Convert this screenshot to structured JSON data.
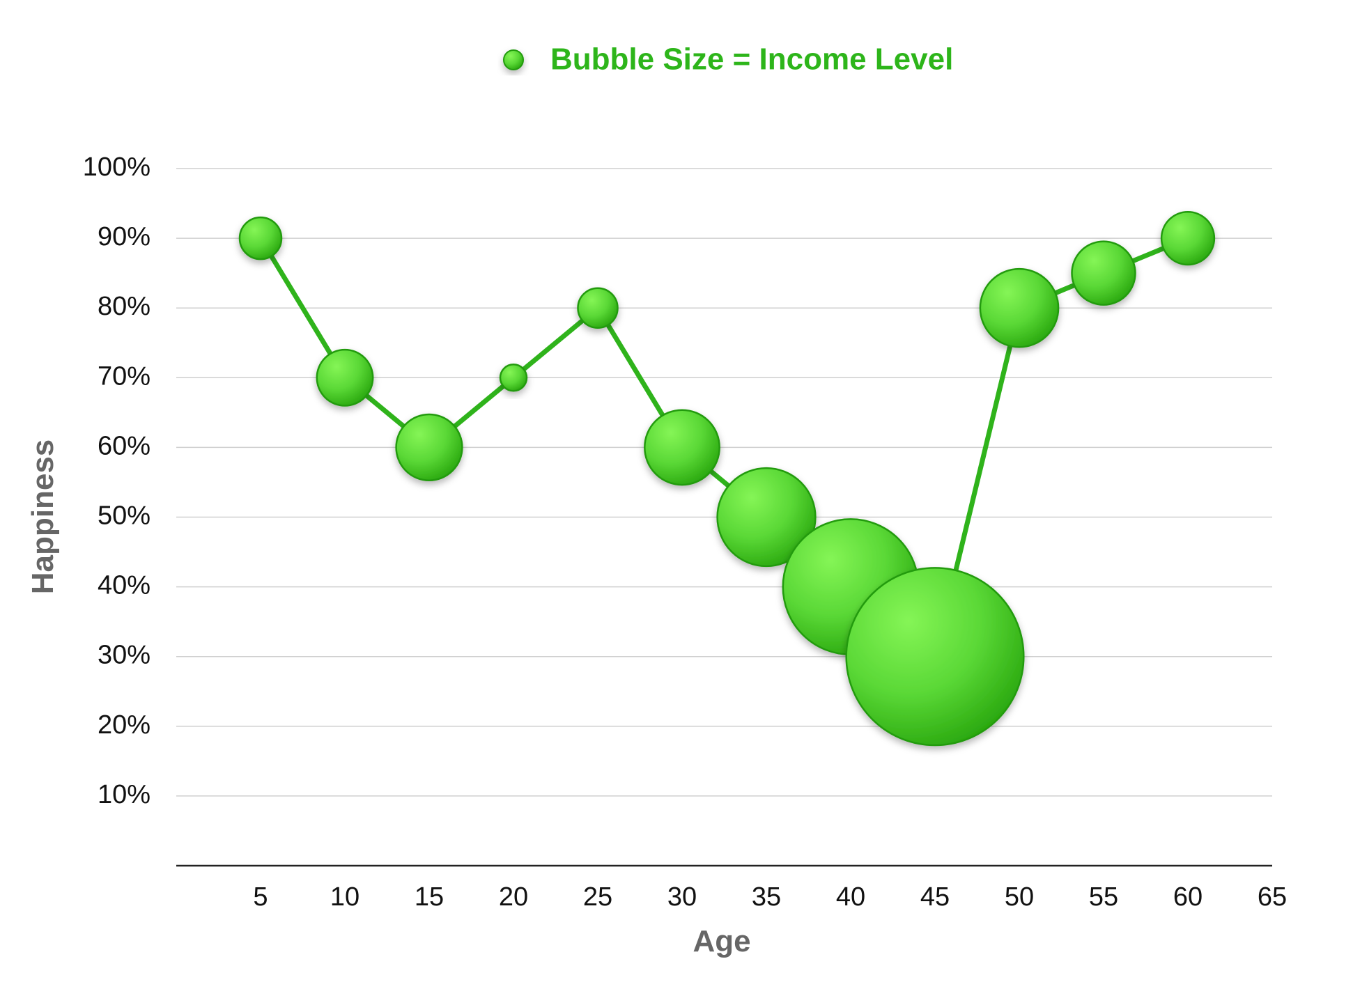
{
  "chart_data": {
    "type": "scatter",
    "subtype": "bubble",
    "legend": {
      "label": "Bubble Size = Income Level",
      "position": "top"
    },
    "xlabel": "Age",
    "ylabel": "Happiness",
    "xlim": [
      0,
      65
    ],
    "ylim": [
      0,
      100
    ],
    "x_ticks": [
      5,
      10,
      15,
      20,
      25,
      30,
      35,
      40,
      45,
      50,
      55,
      60,
      65
    ],
    "y_ticks": [
      10,
      20,
      30,
      40,
      50,
      60,
      70,
      80,
      90,
      100
    ],
    "y_tick_labels": [
      "10%",
      "20%",
      "30%",
      "40%",
      "50%",
      "60%",
      "70%",
      "80%",
      "90%",
      "100%"
    ],
    "grid": true,
    "connected_line": true,
    "series": [
      {
        "name": "Bubble Size = Income Level",
        "points": [
          {
            "x": 5,
            "y": 90,
            "size": 1.0
          },
          {
            "x": 10,
            "y": 70,
            "size": 1.8
          },
          {
            "x": 15,
            "y": 60,
            "size": 2.5
          },
          {
            "x": 20,
            "y": 70,
            "size": 0.4
          },
          {
            "x": 25,
            "y": 80,
            "size": 0.9
          },
          {
            "x": 30,
            "y": 60,
            "size": 3.2
          },
          {
            "x": 35,
            "y": 50,
            "size": 5.5
          },
          {
            "x": 40,
            "y": 40,
            "size": 10.5
          },
          {
            "x": 45,
            "y": 30,
            "size": 18.0
          },
          {
            "x": 50,
            "y": 80,
            "size": 3.5
          },
          {
            "x": 55,
            "y": 85,
            "size": 2.3
          },
          {
            "x": 60,
            "y": 90,
            "size": 1.6
          }
        ]
      }
    ]
  },
  "colors": {
    "line": "#2fb31b",
    "bubble_light": "#7bef4c",
    "bubble_dark": "#2fae12",
    "bubble_stroke": "#249b10",
    "grid": "#cfcfcf",
    "axis": "#222222",
    "axis_title": "#666666",
    "legend_text": "#2db51a"
  }
}
